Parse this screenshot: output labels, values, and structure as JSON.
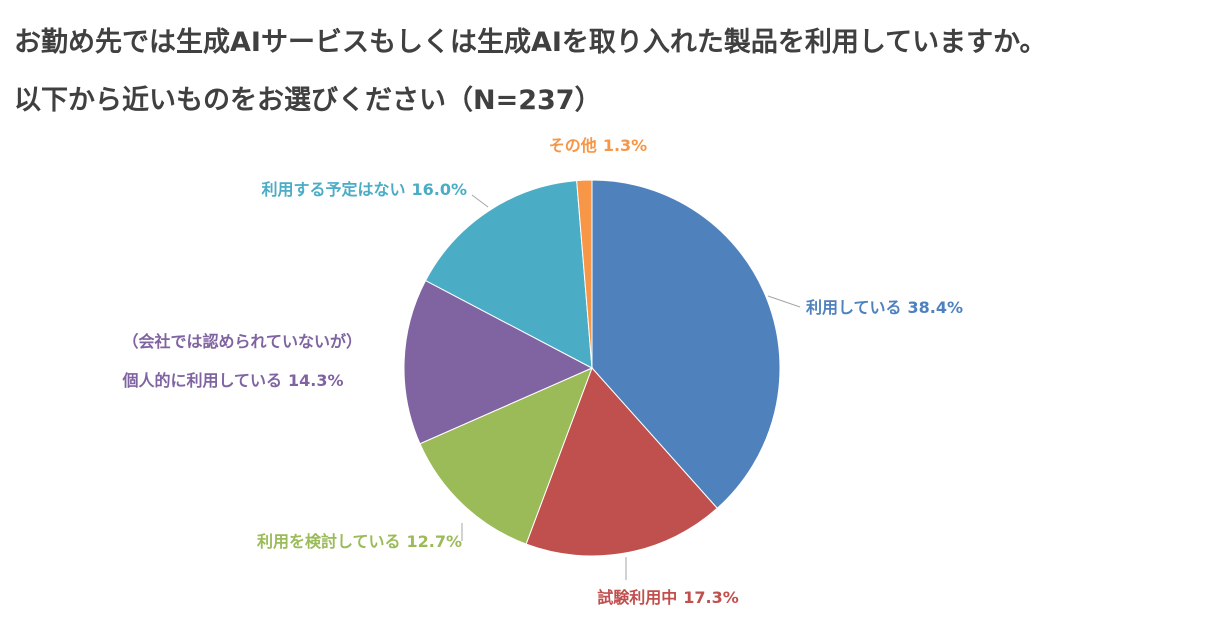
{
  "chart_data": {
    "type": "pie",
    "title": "お勤め先では生成AIサービスもしくは生成AIを取り入れた製品を利用していますか。",
    "subtitle": "以下から近いものをお選びください（N=237）",
    "categories": [
      "利用している",
      "試験利用中",
      "利用を検討している",
      "（会社では認められていないが）\n個人的に利用している",
      "利用する予定はない",
      "その他"
    ],
    "values": [
      38.4,
      17.3,
      12.7,
      14.3,
      16.0,
      1.3
    ],
    "value_labels": [
      "38.4%",
      "17.3%",
      "12.7%",
      "14.3%",
      "16.0%",
      "1.3%"
    ],
    "colors": [
      "#4f81bd",
      "#c0504d",
      "#9bbb59",
      "#8064a2",
      "#4bacc6",
      "#f79646"
    ]
  }
}
